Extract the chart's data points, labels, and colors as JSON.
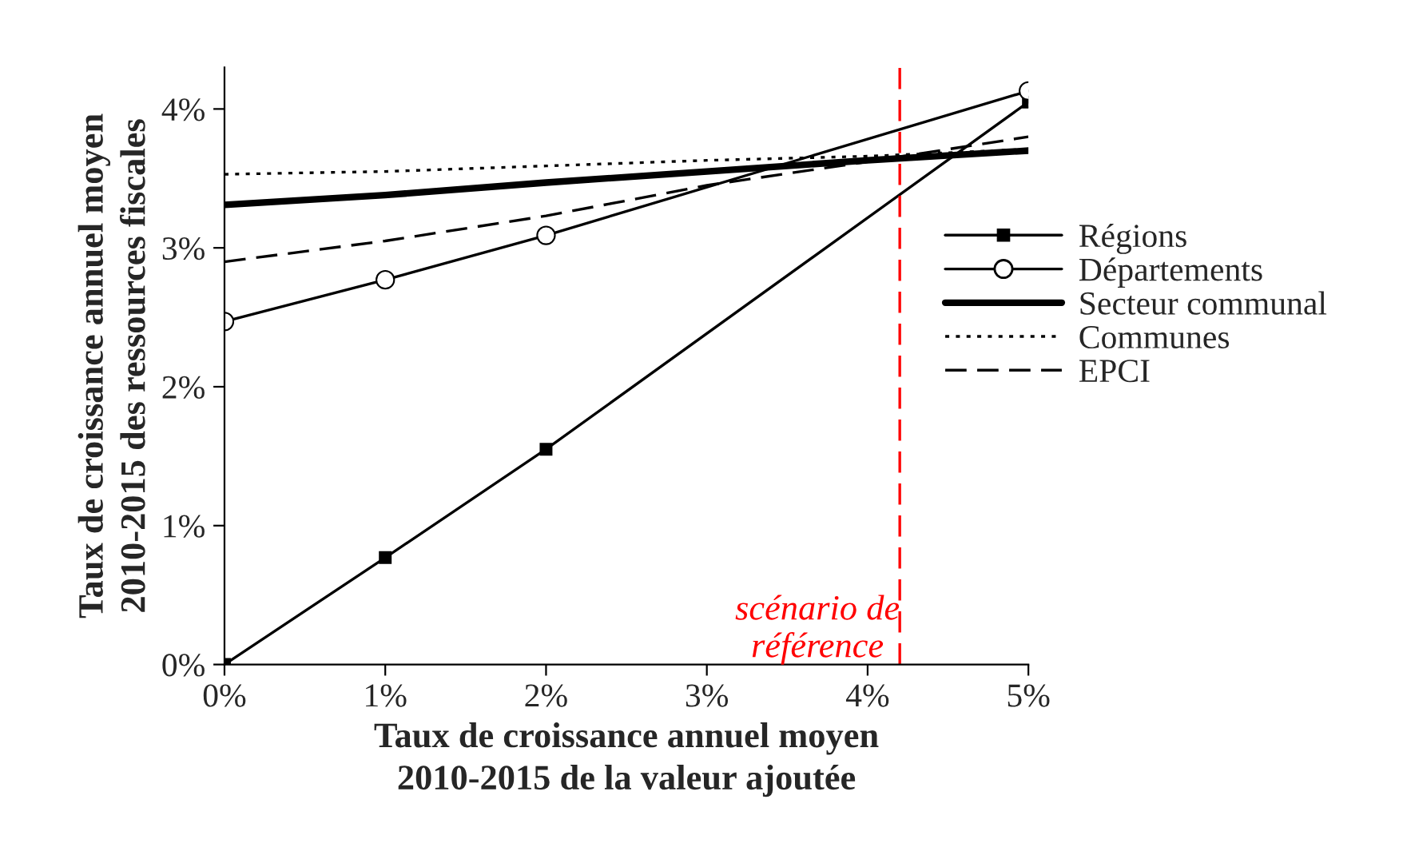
{
  "chart_data": {
    "type": "line",
    "xlabel": "Taux de croissance annuel moyen\n2010-2015 de la valeur ajoutée",
    "ylabel": "Taux de croissance annuel moyen\n2010-2015 des ressources fiscales",
    "xlim": [
      0,
      5
    ],
    "ylim": [
      0,
      4.3
    ],
    "xticks": [
      {
        "value": 0,
        "label": "0%"
      },
      {
        "value": 1,
        "label": "1%"
      },
      {
        "value": 2,
        "label": "2%"
      },
      {
        "value": 3,
        "label": "3%"
      },
      {
        "value": 4,
        "label": "4%"
      },
      {
        "value": 5,
        "label": "5%"
      }
    ],
    "yticks": [
      {
        "value": 0,
        "label": "0%"
      },
      {
        "value": 1,
        "label": "1%"
      },
      {
        "value": 2,
        "label": "2%"
      },
      {
        "value": 3,
        "label": "3%"
      },
      {
        "value": 4,
        "label": "4%"
      }
    ],
    "grid": false,
    "legend": "right",
    "series": [
      {
        "name": "Régions",
        "color": "#000000",
        "x": [
          0,
          1,
          2,
          5
        ],
        "values": [
          0.0,
          0.77,
          1.55,
          4.05
        ],
        "marker": "square",
        "line_style": "solid"
      },
      {
        "name": "Départements",
        "color": "#000000",
        "x": [
          0,
          1,
          2,
          5
        ],
        "values": [
          2.47,
          2.77,
          3.09,
          4.13
        ],
        "marker": "circle",
        "line_style": "solid"
      },
      {
        "name": "Secteur communal",
        "color": "#000000",
        "x": [
          0,
          1,
          2,
          3,
          4,
          5
        ],
        "values": [
          3.31,
          3.38,
          3.47,
          3.55,
          3.63,
          3.7
        ],
        "marker": "none",
        "line_style": "solid"
      },
      {
        "name": "Communes",
        "color": "#000000",
        "x": [
          0,
          1,
          2,
          3,
          4,
          5
        ],
        "values": [
          3.53,
          3.55,
          3.59,
          3.63,
          3.66,
          3.71
        ],
        "marker": "none",
        "line_style": "dotted"
      },
      {
        "name": "EPCI",
        "color": "#000000",
        "x": [
          0,
          1,
          2,
          3,
          4,
          5
        ],
        "values": [
          2.9,
          3.05,
          3.23,
          3.45,
          3.62,
          3.8
        ],
        "marker": "none",
        "line_style": "dashed"
      }
    ],
    "ref_lines": [
      {
        "axis": "x",
        "value": 4.2,
        "label": "scénario de\nréférence",
        "color": "#ff0000",
        "line_style": "dashed"
      }
    ]
  }
}
